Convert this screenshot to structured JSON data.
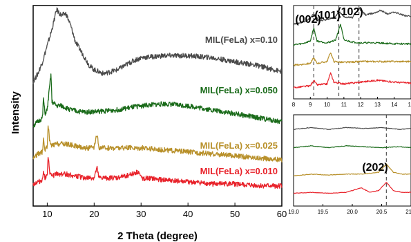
{
  "chart_data": [
    {
      "panel": "main",
      "type": "line",
      "xlabel": "2 Theta (degree)",
      "ylabel": "Intensity",
      "xlim": [
        7,
        60
      ],
      "xticks": [
        "10",
        "20",
        "30",
        "40",
        "50",
        "60"
      ],
      "yticks": "none",
      "grid": false,
      "series": [
        {
          "name": "MIL(FeLa) x=0.10",
          "color": "#4a4a4a",
          "x": [
            7,
            8,
            9,
            10,
            11,
            12,
            13,
            14,
            15,
            16,
            17,
            18,
            19,
            20,
            22,
            25,
            28,
            30,
            35,
            40,
            45,
            50,
            55,
            60
          ],
          "y": [
            0.62,
            0.66,
            0.72,
            0.8,
            0.88,
            0.98,
            0.95,
            0.96,
            0.9,
            0.82,
            0.78,
            0.74,
            0.7,
            0.68,
            0.66,
            0.68,
            0.72,
            0.74,
            0.75,
            0.75,
            0.74,
            0.72,
            0.7,
            0.67
          ]
        },
        {
          "name": "MIL(FeLa) x=0.050",
          "color": "#1a6b1a",
          "x": [
            7,
            8,
            9,
            9.2,
            9.5,
            10,
            10.8,
            11,
            12,
            13,
            15,
            17,
            20,
            25,
            30,
            35,
            40,
            45,
            50,
            55,
            60
          ],
          "y": [
            0.4,
            0.42,
            0.44,
            0.54,
            0.46,
            0.48,
            0.66,
            0.52,
            0.5,
            0.5,
            0.48,
            0.47,
            0.47,
            0.48,
            0.5,
            0.51,
            0.5,
            0.48,
            0.46,
            0.44,
            0.42
          ]
        },
        {
          "name": "MIL(FeLa) x=0.025",
          "color": "#b8902a",
          "x": [
            7,
            8,
            9,
            9.2,
            9.5,
            10,
            10.2,
            10.6,
            11,
            12,
            14,
            16,
            18,
            20,
            20.6,
            21,
            25,
            30,
            35,
            40,
            45,
            50,
            55,
            60
          ],
          "y": [
            0.24,
            0.26,
            0.27,
            0.33,
            0.28,
            0.3,
            0.4,
            0.31,
            0.3,
            0.31,
            0.31,
            0.3,
            0.29,
            0.29,
            0.36,
            0.29,
            0.29,
            0.29,
            0.28,
            0.27,
            0.26,
            0.25,
            0.24,
            0.23
          ]
        },
        {
          "name": "MIL(FeLa) x=0.010",
          "color": "#e8222a",
          "x": [
            7,
            8,
            9,
            9.2,
            9.5,
            10,
            10.2,
            10.6,
            11,
            12,
            14,
            16,
            18,
            20,
            20.6,
            21,
            25,
            29.5,
            30,
            35,
            40,
            45,
            50,
            55,
            60
          ],
          "y": [
            0.11,
            0.12,
            0.13,
            0.18,
            0.14,
            0.15,
            0.24,
            0.16,
            0.15,
            0.16,
            0.16,
            0.15,
            0.14,
            0.14,
            0.19,
            0.14,
            0.14,
            0.17,
            0.14,
            0.13,
            0.12,
            0.11,
            0.11,
            0.1,
            0.1
          ]
        }
      ]
    },
    {
      "panel": "inset-top",
      "type": "line",
      "xlim": [
        8,
        15
      ],
      "xticks": [
        "8",
        "9",
        "10",
        "11",
        "12",
        "13",
        "14",
        "15"
      ],
      "annotations": [
        {
          "label": "(002)",
          "x": 9.2
        },
        {
          "label": "(101)",
          "x": 10.7
        },
        {
          "label": "(102)",
          "x": 11.9
        }
      ],
      "series": [
        {
          "color": "#4a4a4a",
          "x": [
            8,
            8.5,
            9,
            9.2,
            9.5,
            10,
            10.5,
            10.7,
            11,
            11.5,
            11.9,
            12.3,
            12.8,
            13.2,
            13.6,
            14,
            14.5,
            15
          ],
          "y": [
            0.8,
            0.82,
            0.86,
            0.92,
            0.84,
            0.85,
            0.88,
            0.94,
            0.88,
            0.87,
            0.97,
            0.9,
            0.92,
            0.95,
            0.91,
            0.93,
            0.9,
            0.88
          ]
        },
        {
          "color": "#1a6b1a",
          "x": [
            8,
            8.5,
            9,
            9.2,
            9.4,
            10,
            10.5,
            10.8,
            11,
            11.5,
            12,
            13,
            14,
            15
          ],
          "y": [
            0.58,
            0.59,
            0.62,
            0.76,
            0.62,
            0.6,
            0.63,
            0.8,
            0.63,
            0.61,
            0.6,
            0.6,
            0.59,
            0.59
          ]
        },
        {
          "color": "#b8902a",
          "x": [
            8,
            8.5,
            9,
            9.2,
            9.4,
            10,
            10.2,
            10.4,
            11,
            12,
            13,
            14,
            15
          ],
          "y": [
            0.36,
            0.37,
            0.38,
            0.44,
            0.38,
            0.4,
            0.5,
            0.4,
            0.39,
            0.4,
            0.4,
            0.4,
            0.4
          ]
        },
        {
          "color": "#e8222a",
          "x": [
            8,
            8.5,
            9,
            9.2,
            9.4,
            10,
            10.2,
            10.4,
            11,
            12,
            13,
            14,
            15
          ],
          "y": [
            0.12,
            0.13,
            0.14,
            0.2,
            0.15,
            0.16,
            0.28,
            0.18,
            0.16,
            0.18,
            0.2,
            0.18,
            0.17
          ]
        }
      ]
    },
    {
      "panel": "inset-bottom",
      "type": "line",
      "xlim": [
        19.0,
        21.0
      ],
      "xticks": [
        "19.0",
        "19.5",
        "20.0",
        "20.5",
        "21.0"
      ],
      "annotations": [
        {
          "label": "(202)",
          "x": 20.58
        }
      ],
      "series": [
        {
          "color": "#4a4a4a",
          "x": [
            19.0,
            19.3,
            19.6,
            19.9,
            20.2,
            20.5,
            20.8,
            21.0
          ],
          "y": [
            0.84,
            0.86,
            0.84,
            0.86,
            0.85,
            0.86,
            0.84,
            0.85
          ]
        },
        {
          "color": "#1a6b1a",
          "x": [
            19.0,
            19.3,
            19.6,
            19.9,
            20.2,
            20.5,
            20.8,
            21.0
          ],
          "y": [
            0.64,
            0.66,
            0.64,
            0.66,
            0.65,
            0.64,
            0.65,
            0.64
          ]
        },
        {
          "color": "#b8902a",
          "x": [
            19.0,
            19.3,
            19.6,
            19.9,
            20.2,
            20.45,
            20.58,
            20.7,
            20.85,
            21.0
          ],
          "y": [
            0.33,
            0.35,
            0.34,
            0.35,
            0.35,
            0.37,
            0.46,
            0.37,
            0.35,
            0.35
          ]
        },
        {
          "color": "#e8222a",
          "x": [
            19.0,
            19.3,
            19.6,
            19.9,
            20.15,
            20.3,
            20.45,
            20.58,
            20.7,
            20.85,
            21.0
          ],
          "y": [
            0.14,
            0.15,
            0.14,
            0.15,
            0.2,
            0.15,
            0.17,
            0.26,
            0.17,
            0.15,
            0.15
          ]
        }
      ]
    }
  ]
}
